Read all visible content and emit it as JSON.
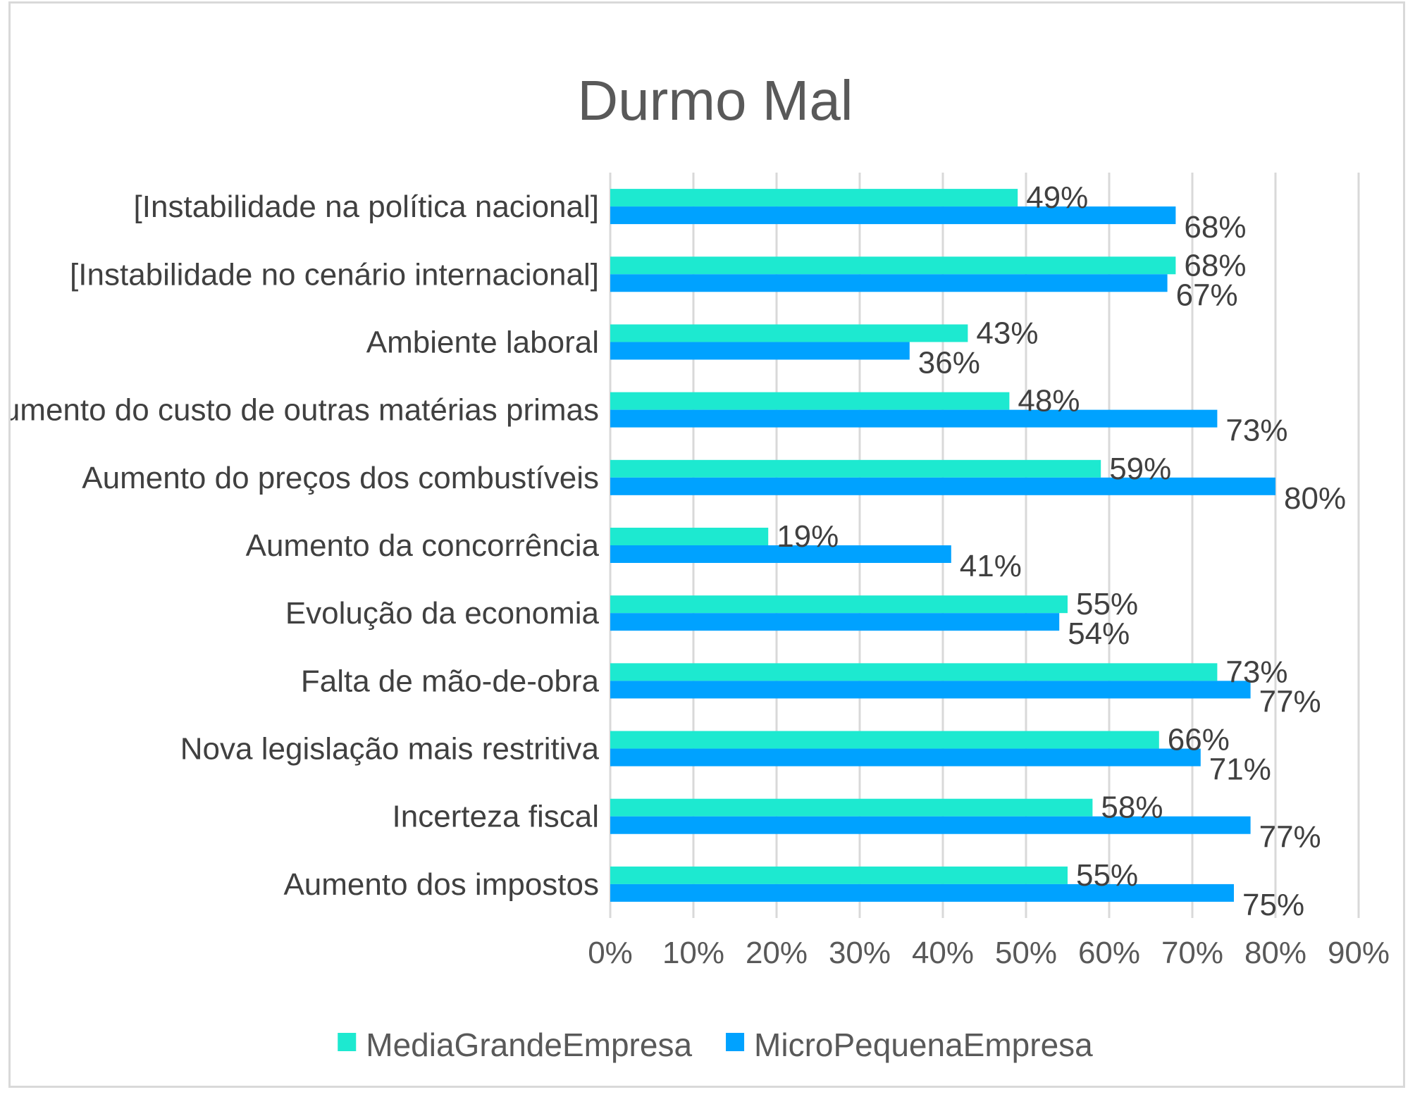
{
  "chart_data": {
    "type": "bar",
    "orientation": "horizontal",
    "title": "Durmo Mal",
    "xlabel": "",
    "ylabel": "",
    "xlim": [
      0,
      90
    ],
    "x_ticks": [
      "0%",
      "10%",
      "20%",
      "30%",
      "40%",
      "50%",
      "60%",
      "70%",
      "80%",
      "90%"
    ],
    "grid": true,
    "legend_position": "bottom",
    "categories": [
      "[Instabilidade na política nacional]",
      "[Instabilidade no cenário internacional]",
      "Ambiente laboral",
      "Aumento do custo de outras matérias primas",
      "Aumento do preços dos combustíveis",
      "Aumento da concorrência",
      "Evolução da economia",
      "Falta de mão-de-obra",
      "Nova legislação mais restritiva",
      "Incerteza fiscal",
      "Aumento dos impostos"
    ],
    "series": [
      {
        "name": "MediaGrandeEmpresa",
        "color": "#1de9d0",
        "values": [
          49,
          68,
          43,
          48,
          59,
          19,
          55,
          73,
          66,
          58,
          55
        ],
        "labels": [
          "49%",
          "68%",
          "43%",
          "48%",
          "59%",
          "19%",
          "55%",
          "73%",
          "66%",
          "58%",
          "55%"
        ]
      },
      {
        "name": "MicroPequenaEmpresa",
        "color": "#00a2ff",
        "values": [
          68,
          67,
          36,
          73,
          80,
          41,
          54,
          77,
          71,
          77,
          75
        ],
        "labels": [
          "68%",
          "67%",
          "36%",
          "73%",
          "80%",
          "41%",
          "54%",
          "77%",
          "71%",
          "77%",
          "75%"
        ]
      }
    ]
  }
}
